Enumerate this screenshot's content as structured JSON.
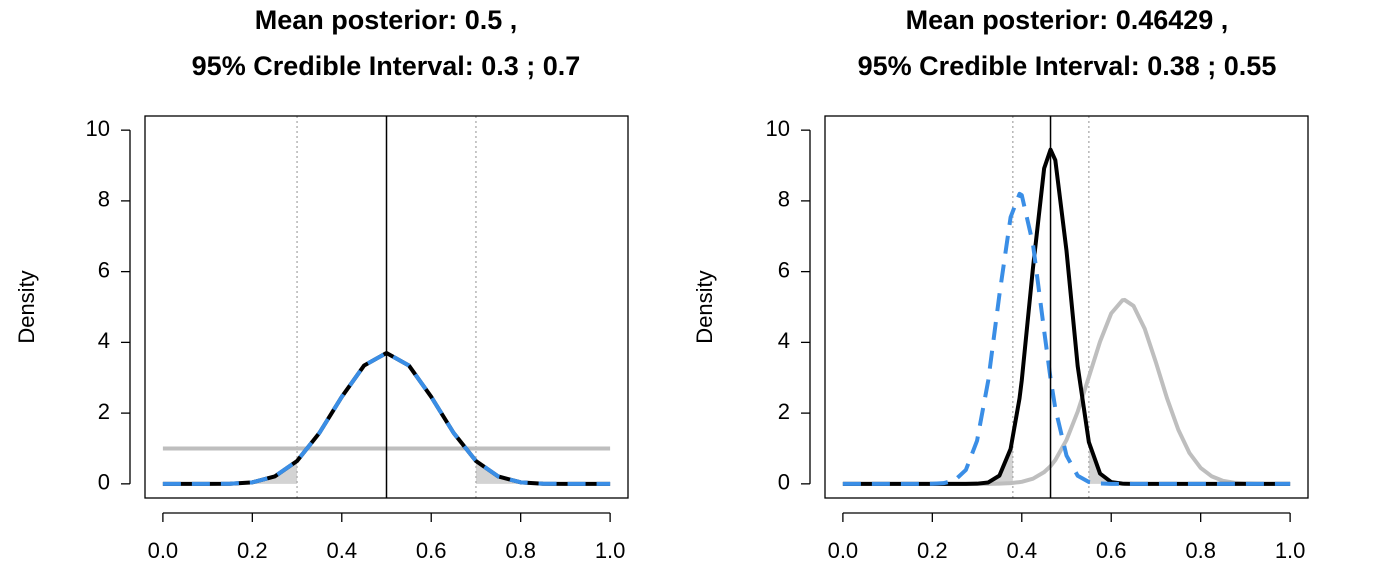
{
  "chart_data": [
    {
      "type": "line",
      "title": [
        "Mean posterior: 0.5 ,",
        "95% Credible Interval: 0.3 ; 0.7"
      ],
      "ylabel": "Density",
      "xlim": [
        -0.04,
        1.04
      ],
      "ylim": [
        -0.4,
        10.4
      ],
      "xticks": [
        {
          "value": 0,
          "label": "0.0"
        },
        0.2,
        0.4,
        0.6,
        0.8,
        {
          "value": 1,
          "label": "1.0"
        }
      ],
      "yticks": [
        0,
        2,
        4,
        6,
        8,
        10
      ],
      "mean": 0.5,
      "interval": [
        0.3,
        0.7
      ],
      "tail_fill": "#d3d3d3",
      "x": [
        0,
        0.05,
        0.1,
        0.15,
        0.2,
        0.25,
        0.3,
        0.35,
        0.4,
        0.45,
        0.5,
        0.55,
        0.6,
        0.65,
        0.7,
        0.75,
        0.8,
        0.85,
        0.9,
        0.95,
        1
      ],
      "series": [
        {
          "color": "#bebebe",
          "style": "solid",
          "values": [
            1,
            1,
            1,
            1,
            1,
            1,
            1,
            1,
            1,
            1,
            1,
            1,
            1,
            1,
            1,
            1,
            1,
            1,
            1,
            1,
            1
          ]
        },
        {
          "color": "#000000",
          "style": "solid",
          "posterior": true,
          "values": [
            0,
            0,
            0.0001,
            0.004,
            0.043,
            0.208,
            0.647,
            1.441,
            2.46,
            3.347,
            3.7,
            3.347,
            2.46,
            1.441,
            0.647,
            0.208,
            0.043,
            0.004,
            0.0001,
            0,
            0
          ]
        },
        {
          "color": "#3a8ee6",
          "style": "dashed",
          "values": [
            0,
            0,
            0.0001,
            0.004,
            0.043,
            0.208,
            0.647,
            1.441,
            2.46,
            3.347,
            3.7,
            3.347,
            2.46,
            1.441,
            0.647,
            0.208,
            0.043,
            0.004,
            0.0001,
            0,
            0
          ]
        }
      ]
    },
    {
      "type": "line",
      "title": [
        "Mean posterior: 0.46429 ,",
        "95% Credible Interval: 0.38 ; 0.55"
      ],
      "ylabel": "Density",
      "xlim": [
        -0.04,
        1.04
      ],
      "ylim": [
        -0.4,
        10.4
      ],
      "xticks": [
        {
          "value": 0,
          "label": "0.0"
        },
        0.2,
        0.4,
        0.6,
        0.8,
        {
          "value": 1,
          "label": "1.0"
        }
      ],
      "yticks": [
        0,
        2,
        4,
        6,
        8,
        10
      ],
      "mean": 0.46429,
      "interval": [
        0.38,
        0.55
      ],
      "tail_fill": "#d3d3d3",
      "x": [
        0,
        0.025,
        0.05,
        0.075,
        0.1,
        0.125,
        0.15,
        0.175,
        0.2,
        0.225,
        0.25,
        0.275,
        0.3,
        0.325,
        0.35,
        0.375,
        0.395,
        0.4,
        0.425,
        0.45,
        0.4643,
        0.475,
        0.5,
        0.525,
        0.55,
        0.575,
        0.6,
        0.625,
        0.63,
        0.65,
        0.675,
        0.7,
        0.725,
        0.75,
        0.775,
        0.8,
        0.825,
        0.85,
        0.875,
        0.9,
        0.925,
        0.95,
        0.975,
        1
      ],
      "series": [
        {
          "color": "#bebebe",
          "style": "solid",
          "values": [
            0,
            0,
            0,
            0,
            0,
            0,
            0,
            0,
            0,
            0,
            0,
            0,
            0,
            0,
            0.007,
            0.021,
            0.048,
            0.058,
            0.146,
            0.331,
            0.5,
            0.675,
            1.24,
            2.04,
            3.02,
            4.02,
            4.82,
            5.19,
            5.2,
            5.03,
            4.38,
            3.43,
            2.41,
            1.53,
            0.87,
            0.45,
            0.21,
            0.085,
            0.032,
            0.011,
            0,
            0,
            0,
            0
          ]
        },
        {
          "color": "#000000",
          "style": "solid",
          "posterior": true,
          "values": [
            0,
            0,
            0,
            0,
            0,
            0,
            0,
            0,
            0,
            0,
            0,
            0,
            0.005,
            0.039,
            0.233,
            0.987,
            2.42,
            2.93,
            6.1,
            8.92,
            9.45,
            9.15,
            6.59,
            3.33,
            1.18,
            0.29,
            0.051,
            0.006,
            0.004,
            0,
            0,
            0,
            0,
            0,
            0,
            0,
            0,
            0,
            0,
            0,
            0,
            0,
            0,
            0
          ]
        },
        {
          "color": "#3a8ee6",
          "style": "dashed",
          "values": [
            0,
            0,
            0,
            0,
            0,
            0,
            0,
            0,
            0.003,
            0.019,
            0.098,
            0.394,
            1.22,
            2.92,
            5.35,
            7.54,
            8.2,
            8.16,
            6.78,
            4.33,
            2.98,
            2.13,
            0.8,
            0.23,
            0.052,
            0.009,
            0,
            0,
            0,
            0,
            0,
            0,
            0,
            0,
            0,
            0,
            0,
            0,
            0,
            0,
            0,
            0,
            0,
            0
          ]
        }
      ]
    }
  ]
}
